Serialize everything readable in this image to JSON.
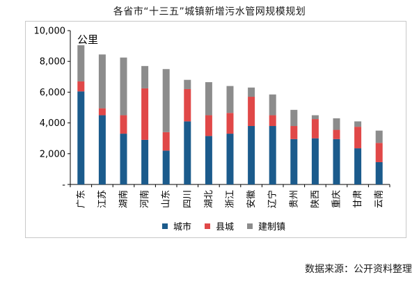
{
  "chart_data": {
    "type": "bar",
    "stacked": true,
    "title": "各省市“十三五”城镇新增污水管网规模规划",
    "unit_label": "公里",
    "xlabel": "",
    "ylabel": "公里",
    "ylim": [
      0,
      10000
    ],
    "yticks": [
      0,
      2000,
      4000,
      6000,
      8000,
      10000
    ],
    "ytick_labels": [
      "-",
      "2,000",
      "4,000",
      "6,000",
      "8,000",
      "10,000"
    ],
    "grid": false,
    "legend_position": "bottom",
    "categories": [
      "广东",
      "江苏",
      "湖南",
      "河南",
      "山东",
      "四川",
      "湖北",
      "浙江",
      "安徽",
      "辽宁",
      "贵州",
      "陕西",
      "重庆",
      "甘肃",
      "云南"
    ],
    "series": [
      {
        "name": "城市",
        "color": "#1b5b8c",
        "values": [
          6050,
          4500,
          3300,
          2900,
          2200,
          4100,
          3150,
          3300,
          3800,
          3800,
          2950,
          3000,
          2950,
          2350,
          1450
        ]
      },
      {
        "name": "县城",
        "color": "#e04848",
        "values": [
          650,
          450,
          1200,
          3350,
          1200,
          2100,
          1350,
          1350,
          1900,
          700,
          850,
          1250,
          600,
          1400,
          1250
        ]
      },
      {
        "name": "建制镇",
        "color": "#8c8c8c",
        "values": [
          2350,
          3500,
          3750,
          1450,
          4100,
          600,
          2150,
          1750,
          600,
          1350,
          1050,
          250,
          750,
          350,
          800
        ]
      }
    ]
  },
  "source_note": "数据来源：公开资料整理"
}
